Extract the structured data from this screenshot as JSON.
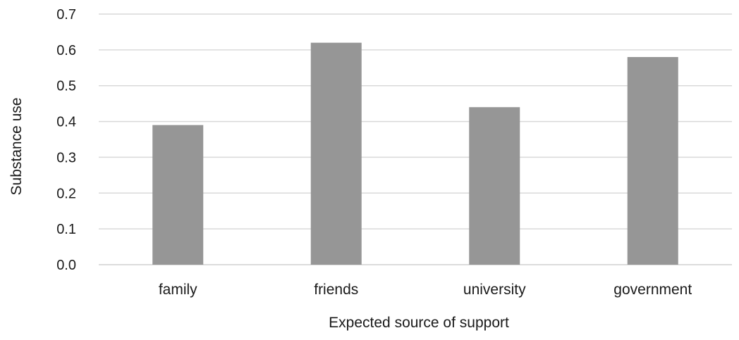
{
  "chart_data": {
    "type": "bar",
    "title": "",
    "xlabel": "Expected source of support",
    "ylabel": "Substance use",
    "categories": [
      "family",
      "friends",
      "university",
      "government"
    ],
    "values": [
      0.39,
      0.62,
      0.44,
      0.58
    ],
    "ylim": [
      0,
      0.7
    ],
    "yticks": [
      "0.0",
      "0.1",
      "0.2",
      "0.3",
      "0.4",
      "0.5",
      "0.6",
      "0.7"
    ],
    "grid": true,
    "legend": "none",
    "bar_color": "#969696"
  }
}
